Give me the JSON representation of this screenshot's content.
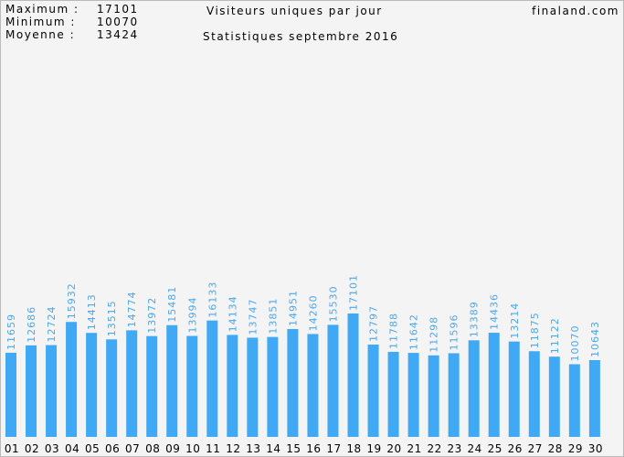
{
  "chart_data": {
    "type": "bar",
    "title": "Visiteurs uniques par jour",
    "subtitle": "Statistiques septembre 2016",
    "site": "finaland.com",
    "stats": [
      {
        "label": "Maximum :",
        "value": 17101
      },
      {
        "label": "Minimum :",
        "value": 10070
      },
      {
        "label": "Moyenne :",
        "value": 13424
      }
    ],
    "categories": [
      "01",
      "02",
      "03",
      "04",
      "05",
      "06",
      "07",
      "08",
      "09",
      "10",
      "11",
      "12",
      "13",
      "14",
      "15",
      "16",
      "17",
      "18",
      "19",
      "20",
      "21",
      "22",
      "23",
      "24",
      "25",
      "26",
      "27",
      "28",
      "29",
      "30"
    ],
    "values": [
      11659,
      12686,
      12724,
      15932,
      14413,
      13515,
      14774,
      13972,
      15481,
      13994,
      16133,
      14134,
      13747,
      13851,
      14951,
      14260,
      15530,
      17101,
      12797,
      11788,
      11642,
      11298,
      11596,
      13389,
      14436,
      13214,
      11875,
      11122,
      10070,
      10643
    ],
    "color": "#3fa9f5"
  }
}
